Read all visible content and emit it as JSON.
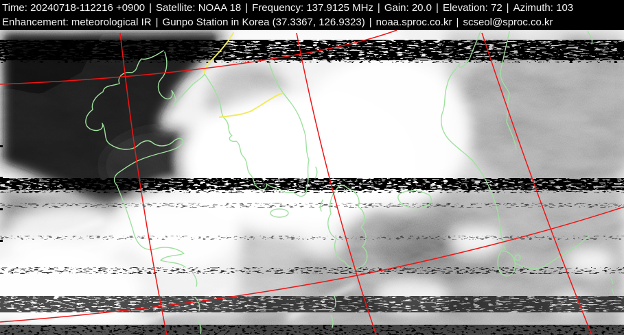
{
  "header": {
    "separator": "|",
    "line1_segments": [
      "Time: 20240718-112216 +0900",
      "Satellite: NOAA 18",
      "Frequency: 137.9125 MHz",
      "Gain: 20.0",
      "Elevation: 72",
      "Azimuth: 103"
    ],
    "line2_segments": [
      "Enhancement: meteorological IR",
      "Gunpo Station in Korea (37.3367, 126.9323)",
      "noaa.sproc.co.kr",
      "scseol@sproc.co.kr"
    ],
    "fields": {
      "time": "20240718-112216 +0900",
      "satellite": "NOAA 18",
      "frequency": "137.9125 MHz",
      "gain": "20.0",
      "elevation": "72",
      "azimuth": "103",
      "enhancement": "meteorological IR",
      "station": "Gunpo Station in Korea",
      "station_coordinates": "(37.3367, 126.9323)",
      "website": "noaa.sproc.co.kr",
      "email": "scseol@sproc.co.kr"
    },
    "colors": {
      "background": "#000000",
      "text": "#f4f4f4"
    }
  },
  "satellite_image": {
    "kind": "NOAA APT meteorological IR image with map overlay",
    "overlay_colors": {
      "graticule": "#ee1515",
      "coastline": "#9fe09f",
      "country_border": "#f2ea5e"
    },
    "overlay_features": [
      "latitude-longitude graticule",
      "coastlines (China, Korea, Japan)",
      "country borders (Yalu river, Korean DMZ)",
      "horizontal receiver noise bands"
    ]
  }
}
